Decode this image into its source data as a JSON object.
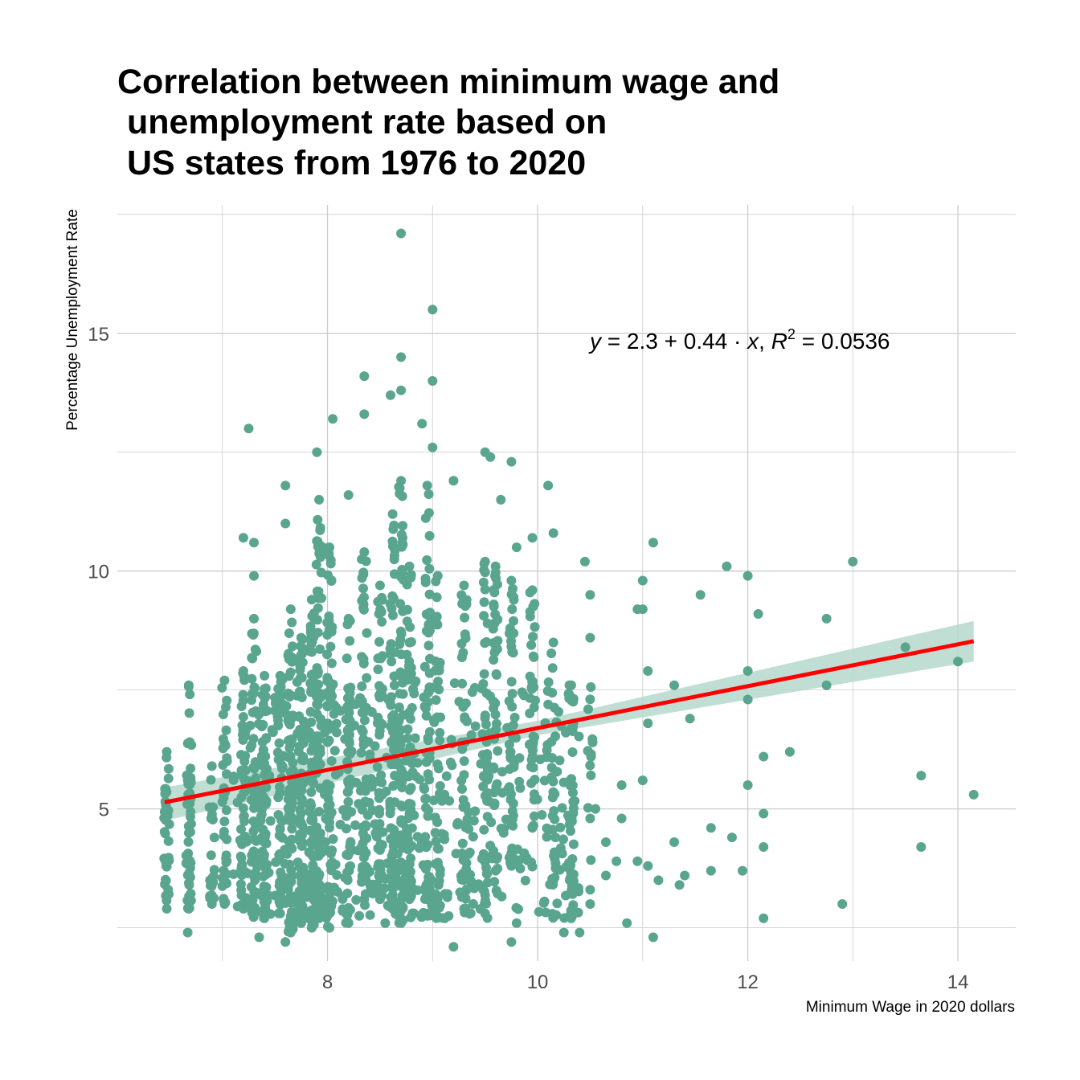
{
  "chart_data": {
    "type": "scatter",
    "title_lines": [
      "Correlation between minimum wage and",
      " unemployment rate based on",
      " US states from 1976 to 2020"
    ],
    "xlabel": "Minimum Wage in 2020 dollars",
    "ylabel": "Percentage Unemployment Rate",
    "xlim": [
      6.0,
      14.55
    ],
    "ylim": [
      1.8,
      17.7
    ],
    "x_ticks": [
      8,
      10,
      12,
      14
    ],
    "x_minor": [
      7,
      9,
      11,
      13
    ],
    "y_ticks": [
      5,
      10,
      15
    ],
    "y_minor": [
      2.5,
      7.5,
      12.5,
      17.5
    ],
    "grid": true,
    "colors": {
      "points": "#5aa58e",
      "line": "#ff0000",
      "ribbon": "#b5d8cd",
      "grid": "#cccccc"
    },
    "equation": {
      "y": "y",
      "eq": " = 2.3 + 0.44 · ",
      "x": "x",
      "sep": ", ",
      "R": "R",
      "sup": "2",
      "rsq": " = 0.0536"
    },
    "regression": {
      "intercept": 2.3,
      "slope": 0.44,
      "r_squared": 0.0536,
      "x_range": [
        6.45,
        14.15
      ]
    },
    "confidence_band": {
      "x": [
        6.45,
        10.0,
        14.15
      ],
      "lower": [
        4.75,
        6.55,
        8.1
      ],
      "upper": [
        5.45,
        6.85,
        8.95
      ]
    },
    "columns": [
      {
        "x": 6.47,
        "ymin": 2.9,
        "ymax": 6.2,
        "n": 35
      },
      {
        "x": 6.68,
        "ymin": 2.9,
        "ymax": 7.6,
        "n": 45
      },
      {
        "x": 6.9,
        "ymin": 3.0,
        "ymax": 5.9,
        "n": 20
      },
      {
        "x": 7.02,
        "ymin": 3.0,
        "ymax": 7.7,
        "n": 35
      },
      {
        "x": 7.2,
        "ymin": 2.9,
        "ymax": 7.9,
        "n": 45
      },
      {
        "x": 7.3,
        "ymin": 2.8,
        "ymax": 9.0,
        "n": 50
      },
      {
        "x": 7.4,
        "ymin": 2.7,
        "ymax": 7.8,
        "n": 60
      },
      {
        "x": 7.55,
        "ymin": 2.8,
        "ymax": 7.8,
        "n": 40
      },
      {
        "x": 7.65,
        "ymin": 2.4,
        "ymax": 9.2,
        "n": 70
      },
      {
        "x": 7.75,
        "ymin": 2.6,
        "ymax": 8.6,
        "n": 80
      },
      {
        "x": 7.85,
        "ymin": 2.5,
        "ymax": 9.4,
        "n": 80
      },
      {
        "x": 7.92,
        "ymin": 2.7,
        "ymax": 11.5,
        "n": 70
      },
      {
        "x": 8.02,
        "ymin": 2.5,
        "ymax": 10.5,
        "n": 65
      },
      {
        "x": 8.2,
        "ymin": 2.6,
        "ymax": 9.0,
        "n": 50
      },
      {
        "x": 8.35,
        "ymin": 3.1,
        "ymax": 10.4,
        "n": 55
      },
      {
        "x": 8.5,
        "ymin": 3.1,
        "ymax": 9.7,
        "n": 50
      },
      {
        "x": 8.62,
        "ymin": 2.9,
        "ymax": 11.2,
        "n": 70
      },
      {
        "x": 8.7,
        "ymin": 2.6,
        "ymax": 11.9,
        "n": 70
      },
      {
        "x": 8.78,
        "ymin": 3.1,
        "ymax": 10.1,
        "n": 55
      },
      {
        "x": 8.95,
        "ymin": 3.1,
        "ymax": 11.8,
        "n": 55
      },
      {
        "x": 9.05,
        "ymin": 2.9,
        "ymax": 9.9,
        "n": 35
      },
      {
        "x": 9.3,
        "ymin": 2.9,
        "ymax": 9.7,
        "n": 40
      },
      {
        "x": 9.5,
        "ymin": 2.8,
        "ymax": 10.2,
        "n": 45
      },
      {
        "x": 9.6,
        "ymin": 3.7,
        "ymax": 10.1,
        "n": 40
      },
      {
        "x": 9.75,
        "ymin": 3.8,
        "ymax": 9.8,
        "n": 40
      },
      {
        "x": 9.95,
        "ymin": 4.6,
        "ymax": 9.6,
        "n": 30
      },
      {
        "x": 10.15,
        "ymin": 3.5,
        "ymax": 8.5,
        "n": 20
      },
      {
        "x": 10.32,
        "ymin": 2.7,
        "ymax": 7.6,
        "n": 40
      },
      {
        "x": 10.5,
        "ymin": 3.3,
        "ymax": 8.6,
        "n": 12
      }
    ],
    "points": [
      [
        8.7,
        17.1
      ],
      [
        9.0,
        15.5
      ],
      [
        8.7,
        14.5
      ],
      [
        8.35,
        14.1
      ],
      [
        8.7,
        13.8
      ],
      [
        8.6,
        13.7
      ],
      [
        9.0,
        14.0
      ],
      [
        8.05,
        13.2
      ],
      [
        8.35,
        13.3
      ],
      [
        7.25,
        13.0
      ],
      [
        8.9,
        13.1
      ],
      [
        7.9,
        12.5
      ],
      [
        9.5,
        12.5
      ],
      [
        9.55,
        12.4
      ],
      [
        9.75,
        12.3
      ],
      [
        9.0,
        12.6
      ],
      [
        9.2,
        11.9
      ],
      [
        7.6,
        11.8
      ],
      [
        10.1,
        11.8
      ],
      [
        9.65,
        11.5
      ],
      [
        8.2,
        11.6
      ],
      [
        7.2,
        10.7
      ],
      [
        7.3,
        10.6
      ],
      [
        10.15,
        10.8
      ],
      [
        11.1,
        10.6
      ],
      [
        9.95,
        10.7
      ],
      [
        9.8,
        10.5
      ],
      [
        7.3,
        9.9
      ],
      [
        7.6,
        11.0
      ],
      [
        10.45,
        10.2
      ],
      [
        11.8,
        10.1
      ],
      [
        12.0,
        9.9
      ],
      [
        11.0,
        9.8
      ],
      [
        13.0,
        10.2
      ],
      [
        11.55,
        9.5
      ],
      [
        10.5,
        9.5
      ],
      [
        10.95,
        9.2
      ],
      [
        11.0,
        9.2
      ],
      [
        12.1,
        9.1
      ],
      [
        12.75,
        9.0
      ],
      [
        13.5,
        8.4
      ],
      [
        14.0,
        8.1
      ],
      [
        11.05,
        7.9
      ],
      [
        12.0,
        7.9
      ],
      [
        11.3,
        7.6
      ],
      [
        12.75,
        7.6
      ],
      [
        12.0,
        7.3
      ],
      [
        11.45,
        6.9
      ],
      [
        11.05,
        6.8
      ],
      [
        12.4,
        6.2
      ],
      [
        12.15,
        6.1
      ],
      [
        11.0,
        5.6
      ],
      [
        12.0,
        5.5
      ],
      [
        10.8,
        5.5
      ],
      [
        13.65,
        5.7
      ],
      [
        14.15,
        5.3
      ],
      [
        10.55,
        5.0
      ],
      [
        10.5,
        4.8
      ],
      [
        10.8,
        4.8
      ],
      [
        12.15,
        4.9
      ],
      [
        11.65,
        4.6
      ],
      [
        10.65,
        4.3
      ],
      [
        11.3,
        4.3
      ],
      [
        11.85,
        4.4
      ],
      [
        12.15,
        4.2
      ],
      [
        13.65,
        4.2
      ],
      [
        10.75,
        3.9
      ],
      [
        11.05,
        3.8
      ],
      [
        11.4,
        3.6
      ],
      [
        11.65,
        3.7
      ],
      [
        11.95,
        3.7
      ],
      [
        10.95,
        3.9
      ],
      [
        10.65,
        3.6
      ],
      [
        11.15,
        3.5
      ],
      [
        11.35,
        3.4
      ],
      [
        10.5,
        3.0
      ],
      [
        12.9,
        3.0
      ],
      [
        12.15,
        2.7
      ],
      [
        10.85,
        2.6
      ],
      [
        11.1,
        2.3
      ],
      [
        10.4,
        2.4
      ],
      [
        10.25,
        2.4
      ],
      [
        9.2,
        2.1
      ],
      [
        9.75,
        2.2
      ],
      [
        9.8,
        2.6
      ],
      [
        7.6,
        2.2
      ],
      [
        7.35,
        2.3
      ],
      [
        8.55,
        2.6
      ],
      [
        6.67,
        2.4
      ]
    ]
  }
}
